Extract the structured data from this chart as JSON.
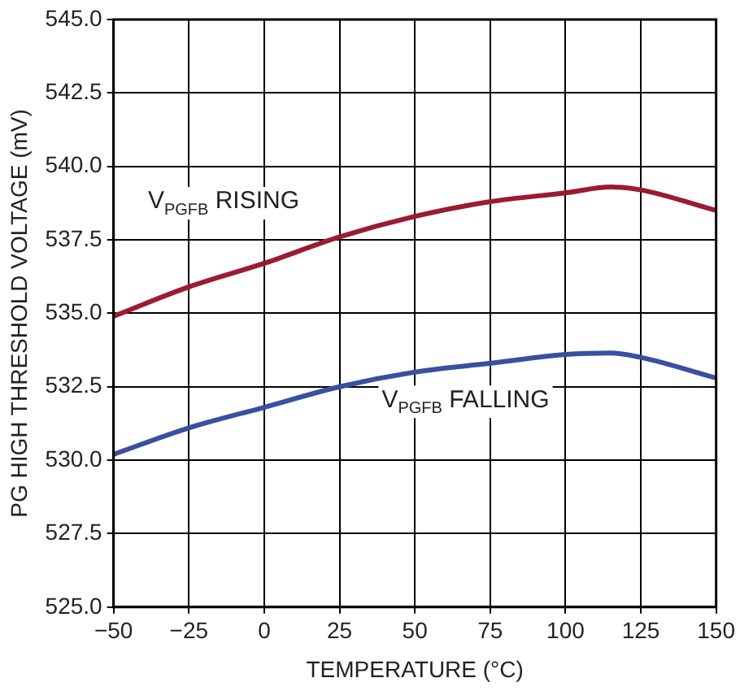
{
  "chart_data": {
    "type": "line",
    "xlabel": "TEMPERATURE (°C)",
    "ylabel": "PG HIGH THRESHOLD VOLTAGE (mV)",
    "x": [
      -50,
      -25,
      0,
      25,
      50,
      75,
      100,
      115,
      125,
      150
    ],
    "series": [
      {
        "color": "#9b1b30",
        "values": [
          534.9,
          535.9,
          536.7,
          537.6,
          538.3,
          538.8,
          539.1,
          539.3,
          539.2,
          538.5
        ]
      },
      {
        "color": "#3a4fa0",
        "values": [
          530.2,
          531.1,
          531.8,
          532.5,
          533.0,
          533.3,
          533.6,
          533.65,
          533.5,
          532.8
        ]
      }
    ],
    "xlim": [
      -50,
      150
    ],
    "xticks": [
      {
        "value": -50,
        "label": "−50"
      },
      {
        "value": -25,
        "label": "−25"
      },
      0,
      25,
      50,
      75,
      100,
      125,
      150
    ],
    "ylim": [
      525,
      545
    ],
    "yticks": [
      {
        "value": 525,
        "label": "525.0"
      },
      {
        "value": 527.5,
        "label": "527.5"
      },
      {
        "value": 530,
        "label": "530.0"
      },
      {
        "value": 532.5,
        "label": "532.5"
      },
      {
        "value": 535,
        "label": "535.0"
      },
      {
        "value": 537.5,
        "label": "537.5"
      },
      {
        "value": 540,
        "label": "540.0"
      },
      {
        "value": 542.5,
        "label": "542.5"
      },
      {
        "value": 545,
        "label": "545.0"
      }
    ],
    "grid": true,
    "legend": false,
    "marker": "none",
    "line_style": "solid",
    "annotations": [
      "V$_{PGFB}$ RISING",
      "V$_{PGFB}$ FALLING"
    ]
  }
}
